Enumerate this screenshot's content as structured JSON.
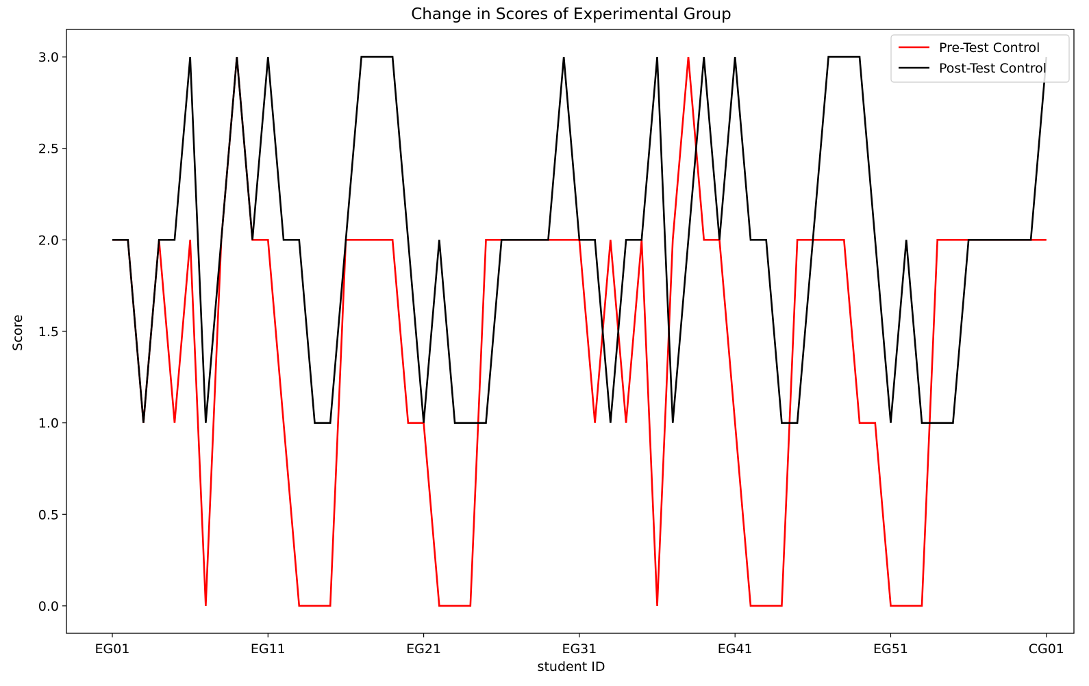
{
  "chart_data": {
    "type": "line",
    "title": "Change in Scores of Experimental Group",
    "xlabel": "student ID",
    "ylabel": "Score",
    "ylim": [
      -0.15,
      3.15
    ],
    "yticks": [
      0.0,
      0.5,
      1.0,
      1.5,
      2.0,
      2.5,
      3.0
    ],
    "yticklabels": [
      "0.0",
      "0.5",
      "1.0",
      "1.5",
      "2.0",
      "2.5",
      "3.0"
    ],
    "x_count": 61,
    "xtick_positions": [
      0,
      10,
      20,
      30,
      40,
      50,
      60
    ],
    "xticklabels": [
      "EG01",
      "EG11",
      "EG21",
      "EG31",
      "EG41",
      "EG51",
      "CG01"
    ],
    "grid": false,
    "legend_position": "top-right",
    "series": [
      {
        "name": "Pre-Test Control",
        "color": "#ff0000",
        "values": [
          2,
          2,
          1,
          2,
          1,
          2,
          0,
          2,
          3,
          2,
          2,
          1,
          0,
          0,
          0,
          2,
          2,
          2,
          2,
          1,
          1,
          0,
          0,
          0,
          2,
          2,
          2,
          2,
          2,
          2,
          2,
          1,
          2,
          1,
          2,
          0,
          2,
          3,
          2,
          2,
          1,
          0,
          0,
          0,
          2,
          2,
          2,
          2,
          1,
          1,
          0,
          0,
          0,
          2,
          2,
          2,
          2,
          2,
          2,
          2,
          2
        ]
      },
      {
        "name": "Post-Test Control",
        "color": "#000000",
        "values": [
          2,
          2,
          1,
          2,
          2,
          3,
          1,
          2,
          3,
          2,
          3,
          2,
          2,
          1,
          1,
          2,
          3,
          3,
          3,
          2,
          1,
          2,
          1,
          1,
          1,
          2,
          2,
          2,
          2,
          3,
          2,
          2,
          1,
          2,
          2,
          3,
          1,
          2,
          3,
          2,
          3,
          2,
          2,
          1,
          1,
          2,
          3,
          3,
          3,
          2,
          1,
          2,
          1,
          1,
          1,
          2,
          2,
          2,
          2,
          2,
          3
        ]
      }
    ]
  }
}
